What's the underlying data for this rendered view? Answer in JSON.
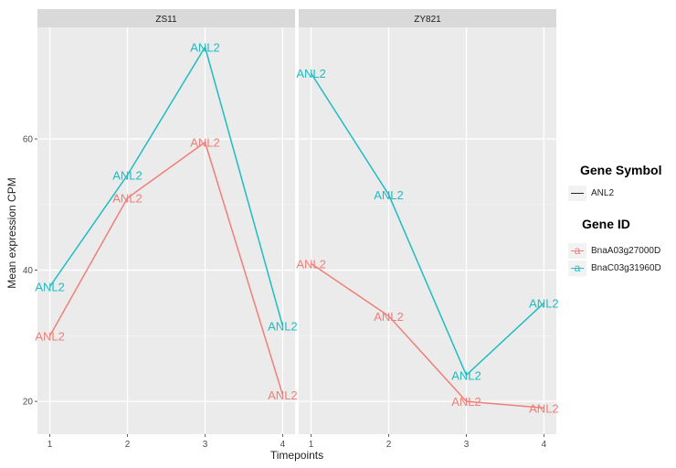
{
  "chart_data": {
    "type": "line",
    "xlabel": "Timepoints",
    "ylabel": "Mean expression CPM",
    "x": [
      1,
      2,
      3,
      4
    ],
    "x_ticks": [
      "1",
      "2",
      "3",
      "4"
    ],
    "y_ticks": [
      20,
      40,
      60
    ],
    "ylim": [
      15,
      77
    ],
    "grid": true,
    "legend_position": "right",
    "point_label": "ANL2",
    "panels": [
      {
        "title": "ZS11",
        "series": [
          {
            "name": "BnaA03g27000D",
            "color": "#f07f78",
            "values": [
              30,
              51,
              59.5,
              21
            ]
          },
          {
            "name": "BnaC03g31960D",
            "color": "#1fbcc2",
            "values": [
              37.5,
              54.5,
              74,
              31.5
            ]
          }
        ]
      },
      {
        "title": "ZY821",
        "series": [
          {
            "name": "BnaA03g27000D",
            "color": "#f07f78",
            "values": [
              41,
              33,
              20,
              19
            ]
          },
          {
            "name": "BnaC03g31960D",
            "color": "#1fbcc2",
            "values": [
              70,
              51.5,
              24,
              35
            ]
          }
        ]
      }
    ]
  },
  "legend": {
    "symbol_title": "Gene Symbol",
    "symbol_items": [
      {
        "label": "ANL2"
      }
    ],
    "id_title": "Gene ID",
    "id_items": [
      {
        "label": "BnaA03g27000D",
        "glyph": "a",
        "color": "#f07f78"
      },
      {
        "label": "BnaC03g31960D",
        "glyph": "a",
        "color": "#1fbcc2"
      }
    ]
  }
}
